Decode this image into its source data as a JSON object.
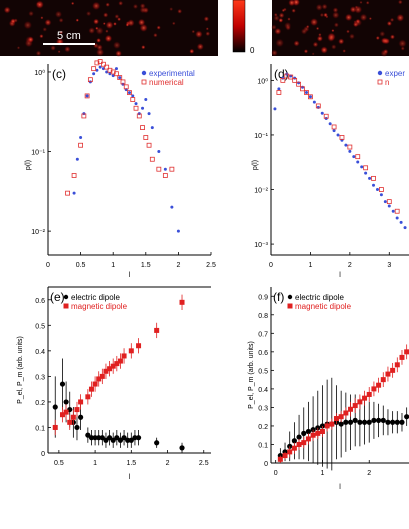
{
  "scale_bar_label": "5 cm",
  "colorbar": {
    "tick_labels": [
      "0"
    ]
  },
  "chart_data": [
    {
      "panel": "(c)",
      "type": "scatter",
      "xlabel": "l",
      "ylabel": "p(l)",
      "x_ticks": [
        "0",
        "0.5",
        "1",
        "1.5",
        "2",
        "2.5"
      ],
      "y_ticks": [
        "10⁰",
        "10⁻¹",
        "10⁻²"
      ],
      "xlim": [
        0,
        2.5
      ],
      "ylim_log10": [
        -2.3,
        0.1
      ],
      "legend": [
        "experimental",
        "numerical"
      ],
      "series": [
        {
          "name": "experimental",
          "color": "#3a4fd8",
          "marker": "dot",
          "x": [
            0.4,
            0.45,
            0.5,
            0.55,
            0.6,
            0.65,
            0.7,
            0.75,
            0.8,
            0.85,
            0.9,
            0.95,
            1.0,
            1.05,
            1.1,
            1.15,
            1.2,
            1.25,
            1.3,
            1.35,
            1.4,
            1.45,
            1.5,
            1.55,
            1.6,
            1.7,
            1.8,
            1.9,
            2.0
          ],
          "y": [
            0.03,
            0.08,
            0.15,
            0.3,
            0.5,
            0.75,
            0.95,
            1.05,
            1.15,
            1.1,
            1.0,
            0.95,
            0.9,
            1.1,
            0.85,
            0.7,
            0.6,
            0.55,
            0.5,
            0.4,
            0.3,
            0.35,
            0.45,
            0.3,
            0.2,
            0.1,
            0.06,
            0.02,
            0.01
          ]
        },
        {
          "name": "numerical",
          "color": "#e03030",
          "marker": "open-square",
          "x": [
            0.3,
            0.4,
            0.5,
            0.55,
            0.6,
            0.65,
            0.7,
            0.75,
            0.8,
            0.85,
            0.9,
            0.95,
            1.0,
            1.05,
            1.1,
            1.15,
            1.2,
            1.25,
            1.3,
            1.35,
            1.4,
            1.45,
            1.5,
            1.55,
            1.6,
            1.7,
            1.8,
            1.9
          ],
          "y": [
            0.03,
            0.05,
            0.12,
            0.28,
            0.5,
            0.8,
            1.1,
            1.3,
            1.35,
            1.25,
            1.15,
            1.05,
            1.0,
            0.95,
            0.85,
            0.75,
            0.65,
            0.55,
            0.45,
            0.35,
            0.28,
            0.2,
            0.15,
            0.12,
            0.08,
            0.06,
            0.05,
            0.06
          ]
        }
      ]
    },
    {
      "panel": "(d)",
      "type": "scatter",
      "xlabel": "l",
      "ylabel": "p(l)",
      "x_ticks": [
        "0",
        "1",
        "2",
        "3"
      ],
      "y_ticks": [
        "10⁰",
        "10⁻¹",
        "10⁻²",
        "10⁻³"
      ],
      "xlim": [
        0,
        3.5
      ],
      "ylim_log10": [
        -3.2,
        0.3
      ],
      "legend": [
        "exper",
        "n"
      ],
      "series": [
        {
          "name": "exper",
          "color": "#3a4fd8",
          "marker": "dot",
          "x": [
            0.1,
            0.2,
            0.3,
            0.4,
            0.5,
            0.6,
            0.7,
            0.8,
            0.9,
            1.0,
            1.1,
            1.2,
            1.3,
            1.4,
            1.5,
            1.6,
            1.7,
            1.8,
            1.9,
            2.0,
            2.1,
            2.2,
            2.3,
            2.4,
            2.5,
            2.6,
            2.7,
            2.8,
            2.9,
            3.0,
            3.1,
            3.2,
            3.3,
            3.4
          ],
          "y": [
            0.3,
            0.7,
            1.1,
            1.3,
            1.2,
            1.1,
            0.9,
            0.75,
            0.6,
            0.5,
            0.4,
            0.32,
            0.25,
            0.2,
            0.16,
            0.12,
            0.1,
            0.08,
            0.065,
            0.05,
            0.04,
            0.032,
            0.026,
            0.02,
            0.016,
            0.012,
            0.01,
            0.008,
            0.006,
            0.005,
            0.004,
            0.003,
            0.0025,
            0.002
          ]
        },
        {
          "name": "n",
          "color": "#e03030",
          "marker": "open-square",
          "x": [
            0.2,
            0.3,
            0.4,
            0.5,
            0.6,
            0.7,
            0.8,
            0.9,
            1.0,
            1.2,
            1.4,
            1.6,
            1.8,
            2.0,
            2.2,
            2.4,
            2.6,
            2.8,
            3.0,
            3.2
          ],
          "y": [
            0.6,
            1.0,
            1.2,
            1.15,
            1.0,
            0.85,
            0.7,
            0.6,
            0.5,
            0.34,
            0.22,
            0.14,
            0.09,
            0.06,
            0.04,
            0.025,
            0.016,
            0.01,
            0.006,
            0.004
          ]
        }
      ]
    },
    {
      "panel": "(e)",
      "type": "scatter",
      "xlabel": "l",
      "ylabel": "P_el, P_m (arb. units)",
      "x_ticks": [
        "0.5",
        "1",
        "1.5",
        "2",
        "2.5"
      ],
      "y_ticks": [
        "0",
        "0.1",
        "0.2",
        "0.3",
        "0.4",
        "0.5",
        "0.6"
      ],
      "xlim": [
        0.35,
        2.6
      ],
      "ylim": [
        0,
        0.65
      ],
      "legend": [
        "electric dipole",
        "magnetic dipole"
      ],
      "series": [
        {
          "name": "electric dipole",
          "color": "#000000",
          "marker": "dot",
          "x": [
            0.45,
            0.55,
            0.6,
            0.65,
            0.7,
            0.75,
            0.8,
            0.9,
            0.95,
            1.0,
            1.05,
            1.1,
            1.15,
            1.2,
            1.25,
            1.3,
            1.35,
            1.4,
            1.45,
            1.5,
            1.55,
            1.6,
            1.85,
            2.2
          ],
          "y": [
            0.18,
            0.27,
            0.2,
            0.17,
            0.12,
            0.1,
            0.14,
            0.07,
            0.06,
            0.06,
            0.06,
            0.06,
            0.05,
            0.06,
            0.05,
            0.06,
            0.05,
            0.06,
            0.05,
            0.05,
            0.06,
            0.06,
            0.04,
            0.02
          ],
          "err": [
            0.12,
            0.1,
            0.08,
            0.07,
            0.06,
            0.05,
            0.05,
            0.03,
            0.03,
            0.03,
            0.03,
            0.03,
            0.03,
            0.03,
            0.03,
            0.03,
            0.03,
            0.03,
            0.03,
            0.03,
            0.03,
            0.03,
            0.02,
            0.02
          ]
        },
        {
          "name": "magnetic dipole",
          "color": "#e02020",
          "marker": "square",
          "x": [
            0.45,
            0.55,
            0.6,
            0.65,
            0.7,
            0.75,
            0.8,
            0.9,
            0.95,
            1.0,
            1.05,
            1.1,
            1.15,
            1.2,
            1.25,
            1.3,
            1.35,
            1.4,
            1.5,
            1.6,
            1.85,
            2.2
          ],
          "y": [
            0.1,
            0.15,
            0.16,
            0.12,
            0.14,
            0.17,
            0.2,
            0.22,
            0.25,
            0.27,
            0.29,
            0.3,
            0.32,
            0.33,
            0.34,
            0.35,
            0.36,
            0.38,
            0.4,
            0.42,
            0.48,
            0.59
          ],
          "err": [
            0.03,
            0.03,
            0.03,
            0.03,
            0.03,
            0.03,
            0.03,
            0.03,
            0.03,
            0.03,
            0.03,
            0.03,
            0.03,
            0.03,
            0.03,
            0.03,
            0.03,
            0.03,
            0.03,
            0.03,
            0.03,
            0.03
          ]
        }
      ]
    },
    {
      "panel": "(f)",
      "type": "scatter",
      "xlabel": "l",
      "ylabel": "P_el, P_m (arb. units)",
      "x_ticks": [
        "0",
        "1",
        "2"
      ],
      "y_ticks": [
        "0",
        "0.1",
        "0.2",
        "0.3",
        "0.4",
        "0.5",
        "0.6",
        "0.7",
        "0.8",
        "0.9"
      ],
      "xlim": [
        -0.1,
        2.85
      ],
      "ylim": [
        0,
        0.95
      ],
      "legend": [
        "electric dipole",
        "magnetic dipole"
      ],
      "series": [
        {
          "name": "electric dipole",
          "color": "#000000",
          "marker": "dot",
          "x": [
            0.1,
            0.2,
            0.3,
            0.4,
            0.5,
            0.6,
            0.7,
            0.8,
            0.9,
            1.0,
            1.1,
            1.2,
            1.3,
            1.4,
            1.5,
            1.6,
            1.7,
            1.8,
            1.9,
            2.0,
            2.1,
            2.2,
            2.3,
            2.4,
            2.5,
            2.6,
            2.7,
            2.8
          ],
          "y": [
            0.04,
            0.06,
            0.09,
            0.12,
            0.14,
            0.16,
            0.17,
            0.18,
            0.19,
            0.2,
            0.21,
            0.21,
            0.22,
            0.21,
            0.22,
            0.22,
            0.23,
            0.22,
            0.22,
            0.22,
            0.23,
            0.23,
            0.23,
            0.22,
            0.22,
            0.22,
            0.22,
            0.25
          ],
          "err": [
            0.04,
            0.05,
            0.08,
            0.1,
            0.12,
            0.14,
            0.16,
            0.18,
            0.2,
            0.22,
            0.24,
            0.25,
            0.2,
            0.18,
            0.16,
            0.15,
            0.14,
            0.13,
            0.12,
            0.11,
            0.1,
            0.09,
            0.08,
            0.07,
            0.06,
            0.06,
            0.05,
            0.05
          ]
        },
        {
          "name": "magnetic dipole",
          "color": "#e02020",
          "marker": "square",
          "x": [
            0.1,
            0.2,
            0.3,
            0.4,
            0.5,
            0.6,
            0.7,
            0.8,
            0.9,
            1.0,
            1.1,
            1.2,
            1.3,
            1.4,
            1.5,
            1.6,
            1.7,
            1.8,
            1.9,
            2.0,
            2.1,
            2.2,
            2.3,
            2.4,
            2.5,
            2.6,
            2.7,
            2.8
          ],
          "y": [
            0.02,
            0.04,
            0.06,
            0.08,
            0.1,
            0.11,
            0.13,
            0.15,
            0.16,
            0.17,
            0.2,
            0.21,
            0.24,
            0.25,
            0.27,
            0.29,
            0.31,
            0.33,
            0.35,
            0.37,
            0.4,
            0.42,
            0.45,
            0.48,
            0.5,
            0.53,
            0.57,
            0.6
          ],
          "err": [
            0.02,
            0.02,
            0.03,
            0.03,
            0.03,
            0.03,
            0.03,
            0.03,
            0.03,
            0.03,
            0.03,
            0.03,
            0.03,
            0.03,
            0.03,
            0.04,
            0.04,
            0.04,
            0.04,
            0.04,
            0.04,
            0.04,
            0.04,
            0.04,
            0.04,
            0.04,
            0.04,
            0.04
          ]
        }
      ]
    }
  ]
}
